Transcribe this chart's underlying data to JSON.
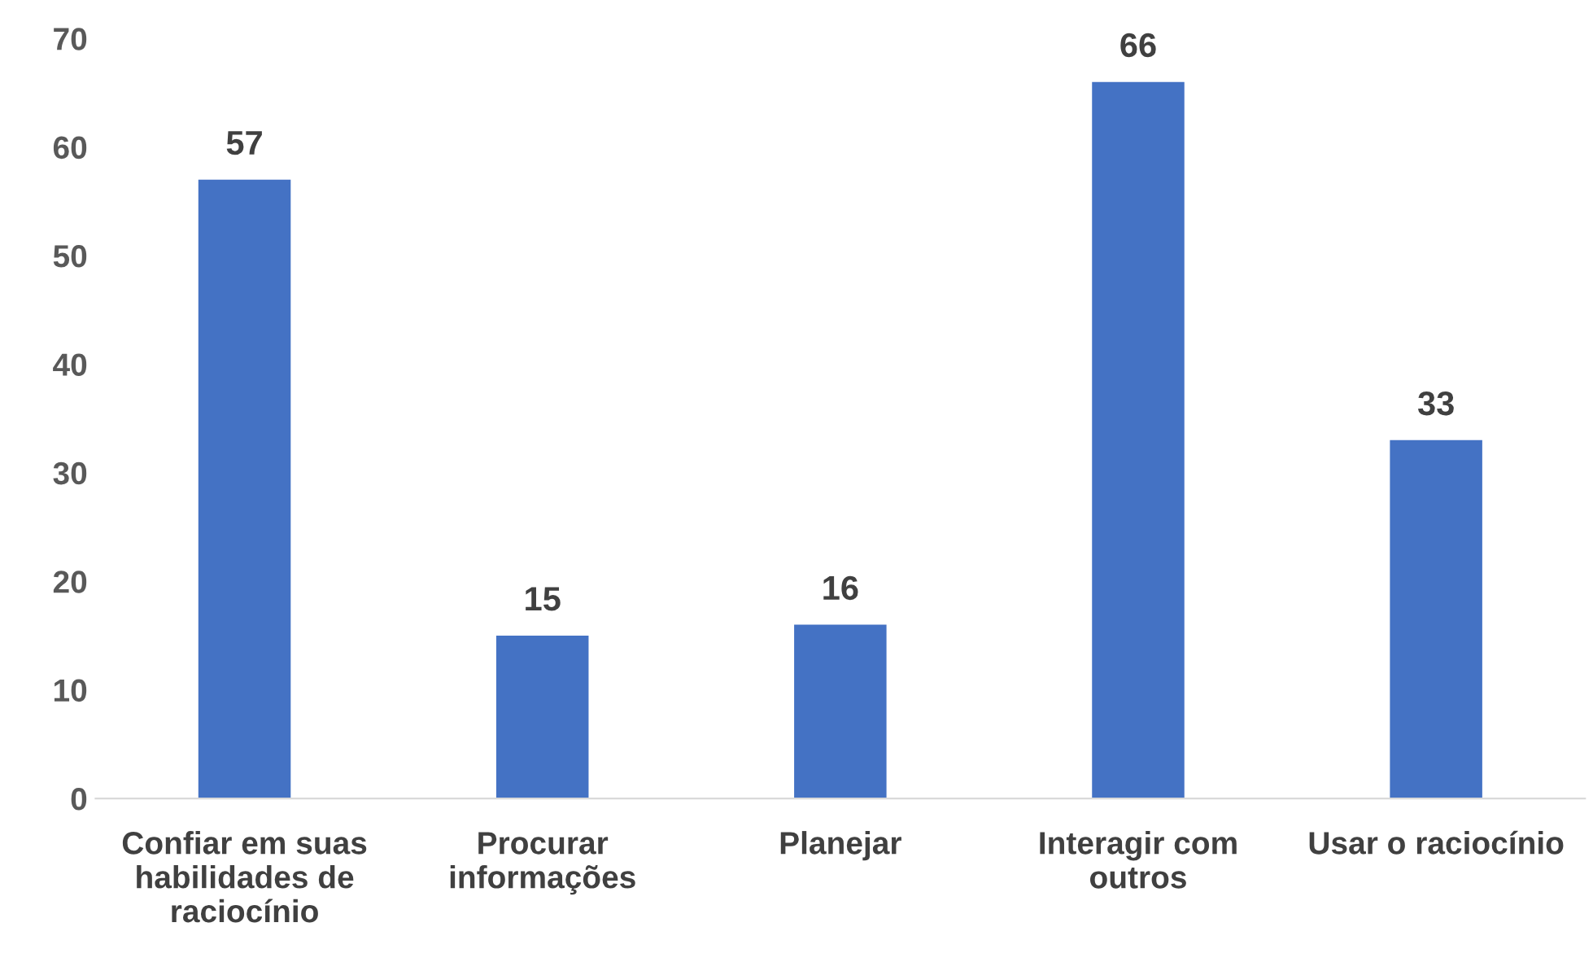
{
  "chart_data": {
    "type": "bar",
    "categories": [
      "Confiar em suas habilidades de raciocínio",
      "Procurar informações",
      "Planejar",
      "Interagir com outros",
      "Usar o raciocínio"
    ],
    "values": [
      57,
      15,
      16,
      66,
      33
    ],
    "color": "#4472c4",
    "ylim": [
      0,
      70
    ],
    "yticks": [
      0,
      10,
      20,
      30,
      40,
      50,
      60,
      70
    ],
    "grid": false,
    "data_labels": true
  }
}
